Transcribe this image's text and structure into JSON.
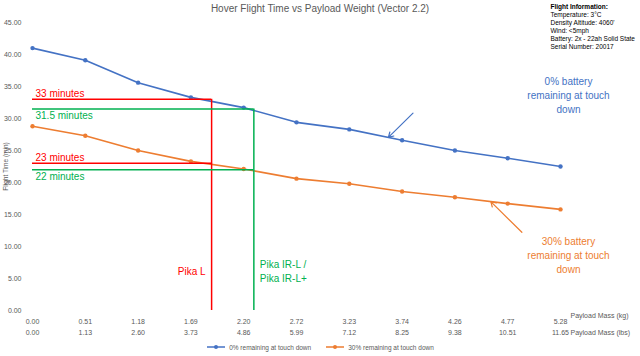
{
  "chart_data": {
    "type": "line",
    "title": "Hover Flight Time vs Payload Weight (Vector 2.2)",
    "x_label": "Payload Mass (kg)",
    "x2_label": "Payload Mass (lbs)",
    "y_label": "Flight Time (min)",
    "x": [
      0,
      0.51,
      1.18,
      1.69,
      2.2,
      2.72,
      3.23,
      3.74,
      4.26,
      4.77,
      5.28
    ],
    "xlim": [
      0,
      5.28
    ],
    "xticks": [
      {
        "value": 0,
        "label": "0.00"
      },
      0.51,
      1.18,
      1.69,
      {
        "value": 2.2,
        "label": "2.20"
      },
      2.72,
      3.23,
      3.74,
      4.26,
      4.77,
      5.28
    ],
    "x2ticks": [
      {
        "value": 0,
        "label": "0.00"
      },
      {
        "value": 0.51,
        "label": "1.13"
      },
      {
        "value": 1.18,
        "label": "2.60"
      },
      {
        "value": 1.69,
        "label": "3.73"
      },
      {
        "value": 2.2,
        "label": "4.86"
      },
      {
        "value": 2.72,
        "label": "5.99"
      },
      {
        "value": 3.23,
        "label": "7.12"
      },
      {
        "value": 3.74,
        "label": "8.25"
      },
      {
        "value": 4.26,
        "label": "9.38"
      },
      {
        "value": 4.77,
        "label": "10.51"
      },
      {
        "value": 5.28,
        "label": "11.65"
      }
    ],
    "ylim": [
      0,
      45
    ],
    "yticks": [
      {
        "value": 0,
        "label": "0.00"
      },
      {
        "value": 5,
        "label": "5.00"
      },
      {
        "value": 10,
        "label": "10.00"
      },
      {
        "value": 15,
        "label": "15.00"
      },
      {
        "value": 20,
        "label": "20.00"
      },
      {
        "value": 25,
        "label": "25.00"
      },
      {
        "value": 30,
        "label": "30.00"
      },
      {
        "value": 35,
        "label": "35.00"
      },
      {
        "value": 40,
        "label": "40.00"
      },
      {
        "value": 45,
        "label": "45.00"
      }
    ],
    "grid": false,
    "legend": "bottom",
    "series": [
      {
        "name": "0% remaining at touch down",
        "color": "#4472c4",
        "marker": "circle",
        "annotation": "0% battery\nremaining at touch\ndown",
        "values": [
          41.0,
          39.1,
          35.6,
          33.3,
          31.7,
          29.4,
          28.3,
          26.6,
          25.0,
          23.8,
          22.5
        ]
      },
      {
        "name": "30% remaining at touch down",
        "color": "#ed7d31",
        "marker": "circle",
        "annotation": "30% battery\nremaining at touch\ndown",
        "values": [
          28.8,
          27.3,
          25.0,
          23.3,
          22.1,
          20.6,
          19.8,
          18.6,
          17.7,
          16.7,
          15.8
        ]
      }
    ],
    "reference_markers": [
      {
        "label": "Pika L",
        "x": 1.89,
        "color": "#ff0000",
        "levels": [
          {
            "y": 33,
            "label": "33 minutes"
          },
          {
            "y": 23,
            "label": "23 minutes"
          }
        ]
      },
      {
        "label": "Pika IR-L /\nPika IR-L+",
        "x": 2.3,
        "color": "#00b050",
        "levels": [
          {
            "y": 31.5,
            "label": "31.5 minutes"
          },
          {
            "y": 22,
            "label": "22 minutes"
          }
        ]
      }
    ],
    "info_box": {
      "title": "Flight Information:",
      "lines": [
        "Temperature: 3°C",
        "Density Altitude: 4060'",
        "Wind: <5mph",
        "Battery: 2x - 22ah Solid State",
        "Serial Number: 20017"
      ]
    }
  }
}
